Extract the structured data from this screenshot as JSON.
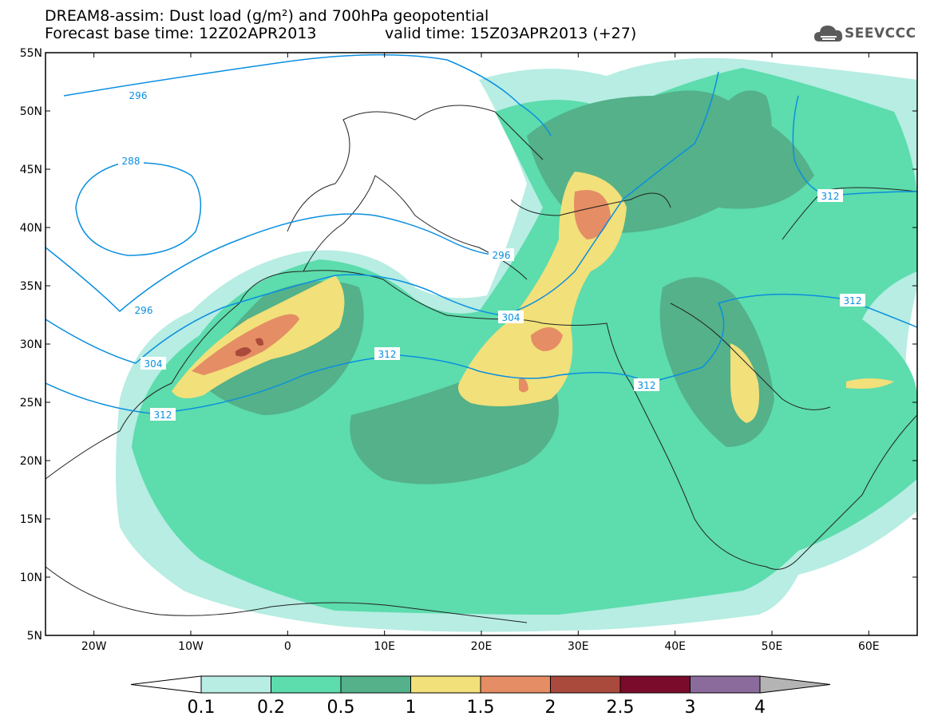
{
  "title_line1": "DREAM8-assim: Dust load (g/m²) and 700hPa geopotential",
  "title_line2_base": "Forecast base time: 12Z02APR2013",
  "title_line2_valid": "valid time: 15Z03APR2013 (+27)",
  "logo_text": "SEEVCCC",
  "map": {
    "lon_range": [
      -25,
      65
    ],
    "lat_range": [
      5,
      55
    ],
    "lat_ticks": [
      "55N",
      "50N",
      "45N",
      "40N",
      "35N",
      "30N",
      "25N",
      "20N",
      "15N",
      "10N",
      "5N"
    ],
    "lon_ticks": [
      "20W",
      "10W",
      "0",
      "10E",
      "20E",
      "30E",
      "40E",
      "50E",
      "60E"
    ]
  },
  "contour_labels": [
    "296",
    "288",
    "296",
    "304",
    "296",
    "304",
    "312",
    "312",
    "312",
    "312",
    "312"
  ],
  "colorbar": {
    "labels": [
      "0.1",
      "0.2",
      "0.5",
      "1",
      "1.5",
      "2",
      "2.5",
      "3",
      "4"
    ],
    "colors": [
      "#b7ede3",
      "#5ddcad",
      "#54b18a",
      "#f2e07a",
      "#e58d64",
      "#aa4a3c",
      "#7b0b2a",
      "#8b6a9c",
      "#b4b4b4"
    ]
  },
  "colors": {
    "contour": "#0a8fe0",
    "background": "#ffffff"
  }
}
